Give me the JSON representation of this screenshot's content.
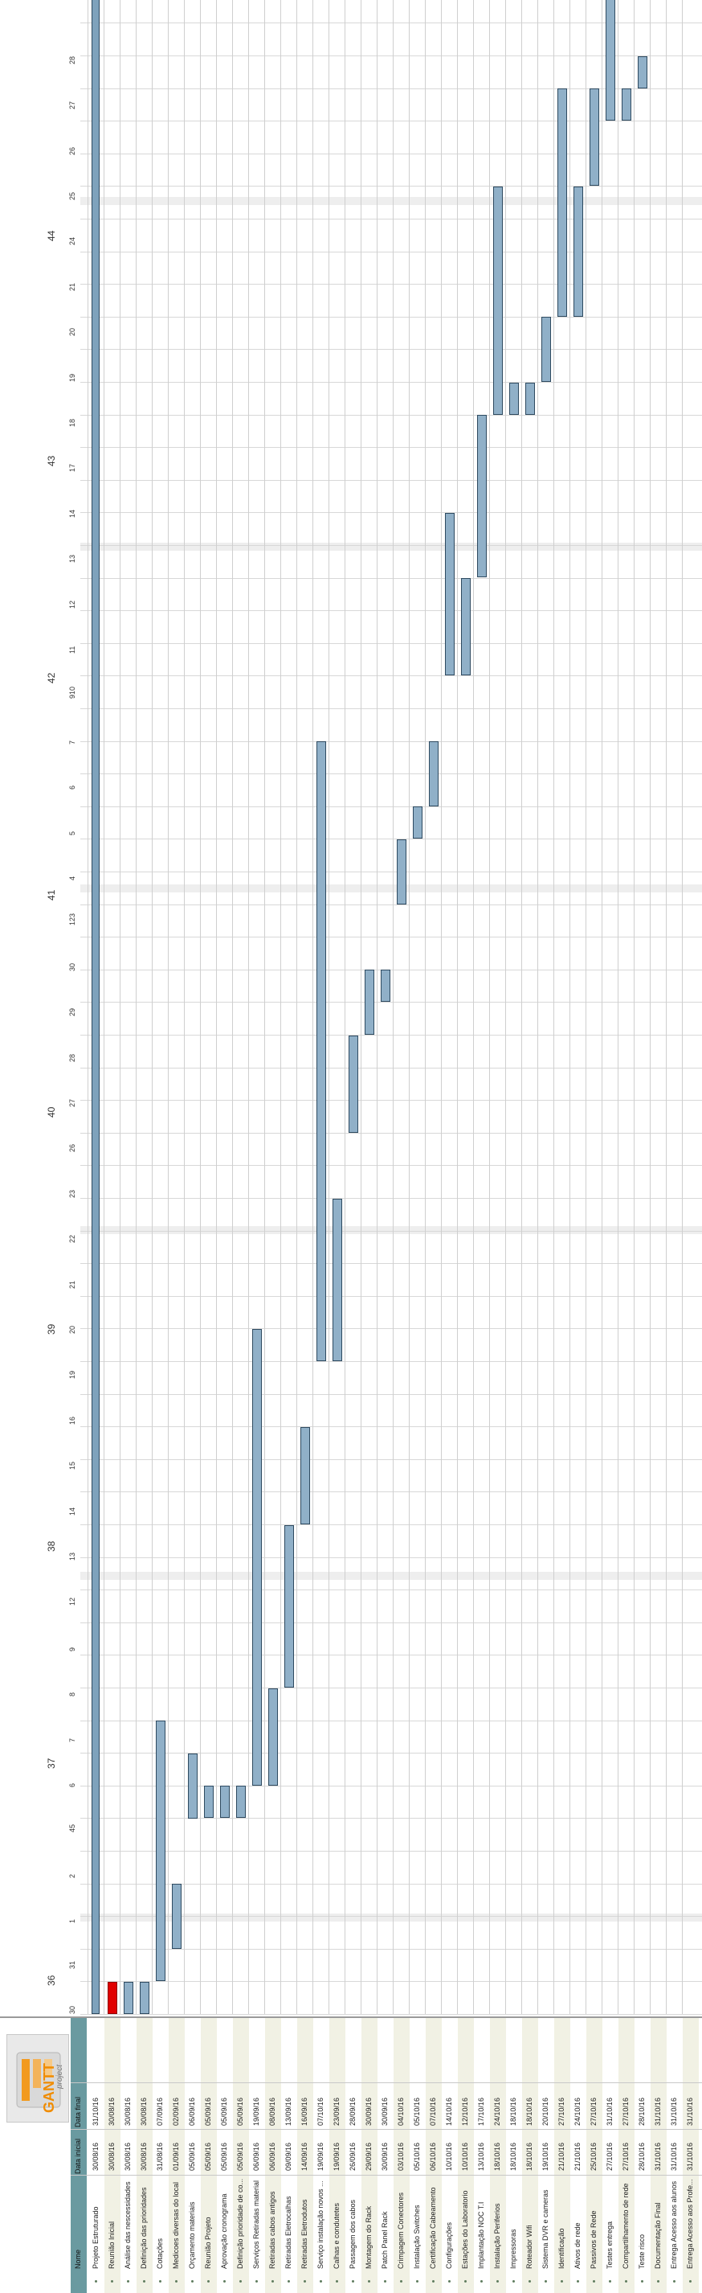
{
  "app": {
    "logo_text": "GANTT",
    "logo_sub": "project",
    "colors": {
      "task_bar": "#90b0c8",
      "task_border": "#2e4a60",
      "critical": "#e00000",
      "header_bg": "#6a9aa0",
      "alt_row": "#f1f1e4"
    }
  },
  "columns": {
    "name": "Nome",
    "start": "Data inicial",
    "end": "Data final"
  },
  "timeline": {
    "weeks": [
      "36",
      "37",
      "38",
      "39",
      "40",
      "41",
      "42",
      "43",
      "44"
    ],
    "days": [
      "30",
      "31",
      "1",
      "2",
      "45",
      "6",
      "7",
      "8",
      "9",
      "12",
      "13",
      "14",
      "15",
      "16",
      "19",
      "20",
      "21",
      "22",
      "23",
      "26",
      "27",
      "28",
      "29",
      "30",
      "123",
      "4",
      "5",
      "6",
      "7",
      "910",
      "11",
      "12",
      "13",
      "14",
      "17",
      "18",
      "19",
      "20",
      "21",
      "24",
      "25",
      "26",
      "27",
      "28"
    ]
  },
  "tasks": [
    {
      "name": "Projeto Estruturado",
      "start": "30/08/16",
      "end": "31/10/16",
      "type": "summary"
    },
    {
      "name": "Reunião Inicial",
      "start": "30/08/16",
      "end": "30/08/16",
      "type": "critical"
    },
    {
      "name": "Análise das nescessidades",
      "start": "30/08/16",
      "end": "30/08/16"
    },
    {
      "name": "Definição das prioridades",
      "start": "30/08/16",
      "end": "30/08/16"
    },
    {
      "name": "Cotações",
      "start": "31/08/16",
      "end": "07/09/16"
    },
    {
      "name": "Medicoes diversas do local",
      "start": "01/09/16",
      "end": "02/09/16"
    },
    {
      "name": "Orçamento materiais",
      "start": "05/09/16",
      "end": "06/09/16"
    },
    {
      "name": "Reunião Projeto",
      "start": "05/09/16",
      "end": "05/09/16"
    },
    {
      "name": "Aprovação cronograma",
      "start": "05/09/16",
      "end": "05/09/16"
    },
    {
      "name": "Definição prioridade de co...",
      "start": "05/09/16",
      "end": "05/09/16"
    },
    {
      "name": "Serviços Retiradas material",
      "start": "06/09/16",
      "end": "19/09/16"
    },
    {
      "name": "Retiradas cabos antigos",
      "start": "06/09/16",
      "end": "08/09/16"
    },
    {
      "name": "Retiradas Eletrocalhas",
      "start": "09/09/16",
      "end": "13/09/16"
    },
    {
      "name": "Retiradas Eletrodutos",
      "start": "14/09/16",
      "end": "16/09/16"
    },
    {
      "name": "Serviço instalação novos ...",
      "start": "19/09/16",
      "end": "07/10/16"
    },
    {
      "name": "Calhas e condutetes",
      "start": "19/09/16",
      "end": "23/09/16"
    },
    {
      "name": "Passagem dos cabos",
      "start": "26/09/16",
      "end": "28/09/16"
    },
    {
      "name": "Montagem do Rack",
      "start": "29/09/16",
      "end": "30/09/16"
    },
    {
      "name": "Patch Panel Rack",
      "start": "30/09/16",
      "end": "30/09/16"
    },
    {
      "name": "Crimpagem Conectores",
      "start": "03/10/16",
      "end": "04/10/16"
    },
    {
      "name": "Instalação Switches",
      "start": "05/10/16",
      "end": "05/10/16"
    },
    {
      "name": "Certificação Cabeamento",
      "start": "06/10/16",
      "end": "07/10/16"
    },
    {
      "name": "Configurações",
      "start": "10/10/16",
      "end": "14/10/16"
    },
    {
      "name": "Estações do Laboratorio",
      "start": "10/10/16",
      "end": "12/10/16"
    },
    {
      "name": "Implantação NOC T.I",
      "start": "13/10/16",
      "end": "17/10/16"
    },
    {
      "name": "Instalação Periferios",
      "start": "18/10/16",
      "end": "24/10/16"
    },
    {
      "name": "Impressoras",
      "start": "18/10/16",
      "end": "18/10/16"
    },
    {
      "name": "Roteador Wifi",
      "start": "18/10/16",
      "end": "18/10/16"
    },
    {
      "name": "Sistema DVR e cameras",
      "start": "19/10/16",
      "end": "20/10/16"
    },
    {
      "name": "Identificação",
      "start": "21/10/16",
      "end": "27/10/16"
    },
    {
      "name": "Ativos de rede",
      "start": "21/10/16",
      "end": "24/10/16"
    },
    {
      "name": "Passivos de Rede",
      "start": "25/10/16",
      "end": "27/10/16"
    },
    {
      "name": "Testes entrega",
      "start": "27/10/16",
      "end": "31/10/16"
    },
    {
      "name": "Compartilhamento de rede",
      "start": "27/10/16",
      "end": "27/10/16"
    },
    {
      "name": "Teste risco",
      "start": "28/10/16",
      "end": "28/10/16"
    },
    {
      "name": "Documentação Final",
      "start": "31/10/16",
      "end": "31/10/16"
    },
    {
      "name": "Entrega Acesso aos alunos",
      "start": "31/10/16",
      "end": "31/10/16"
    },
    {
      "name": "Entrega Acesso aos Profe...",
      "start": "31/10/16",
      "end": "31/10/16"
    }
  ]
}
